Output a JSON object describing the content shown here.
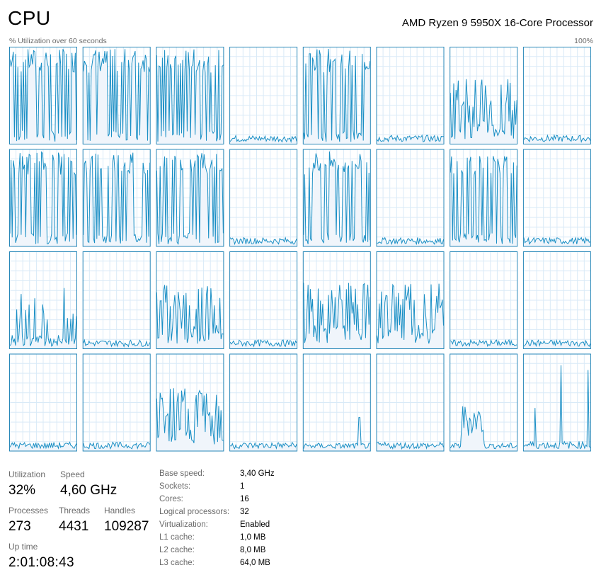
{
  "header": {
    "title": "CPU",
    "processor": "AMD Ryzen 9 5950X 16-Core Processor",
    "graph_caption": "% Utilization over 60 seconds",
    "graph_max": "100%"
  },
  "colors": {
    "graph_line": "#1a8fc5",
    "graph_fill": "#f0f5fb",
    "graph_border": "#2787b8",
    "grid": "#d9eaf7"
  },
  "core_activity": [
    "high",
    "high",
    "high",
    "idle",
    "high",
    "idle",
    "mid",
    "idle",
    "high",
    "high",
    "high",
    "idle",
    "high",
    "idle",
    "high",
    "idle",
    "low-mid",
    "idle",
    "mid",
    "idle",
    "mid",
    "mid",
    "idle",
    "idle",
    "idle",
    "idle",
    "mid",
    "idle",
    "idle-spike",
    "idle",
    "low-bump",
    "idle-spikes"
  ],
  "stats": {
    "utilization": {
      "label": "Utilization",
      "value": "32%"
    },
    "speed": {
      "label": "Speed",
      "value": "4,60 GHz"
    },
    "processes": {
      "label": "Processes",
      "value": "273"
    },
    "threads": {
      "label": "Threads",
      "value": "4431"
    },
    "handles": {
      "label": "Handles",
      "value": "109287"
    },
    "uptime": {
      "label": "Up time",
      "value": "2:01:08:43"
    }
  },
  "info": [
    {
      "label": "Base speed:",
      "value": "3,40 GHz"
    },
    {
      "label": "Sockets:",
      "value": "1"
    },
    {
      "label": "Cores:",
      "value": "16"
    },
    {
      "label": "Logical processors:",
      "value": "32"
    },
    {
      "label": "Virtualization:",
      "value": "Enabled"
    },
    {
      "label": "L1 cache:",
      "value": "1,0 MB"
    },
    {
      "label": "L2 cache:",
      "value": "8,0 MB"
    },
    {
      "label": "L3 cache:",
      "value": "64,0 MB"
    }
  ]
}
